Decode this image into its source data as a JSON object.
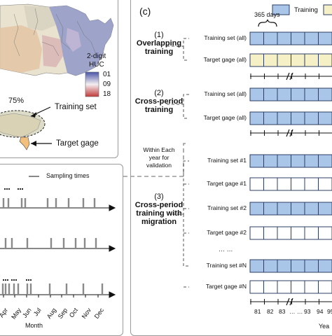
{
  "map_panel": {
    "huc_title_line1": "2-digit",
    "huc_title_line2": "HUC",
    "scale_labels": [
      "01",
      "09",
      "18"
    ],
    "percent_label": "75%",
    "training_set_label": "Training set",
    "target_gage_label": "Target gage"
  },
  "sampling_panel": {
    "legend_label": "Sampling times",
    "months": [
      "Apr",
      "May",
      "Jun",
      "Jul",
      "Aug",
      "Sep",
      "Oct",
      "Nov",
      "Dec"
    ],
    "xlabel": "Month"
  },
  "panel_c": {
    "panel_label": "(c)",
    "days_label": "365 days",
    "legend_training": "Training",
    "validation_note": [
      "Within Each",
      "year for",
      "validation"
    ],
    "sections": [
      {
        "number": "(1)",
        "title": [
          "Overlapping",
          "training"
        ],
        "rows": [
          "Training set (all)",
          "Target gage (all)"
        ]
      },
      {
        "number": "(2)",
        "title": [
          "Cross-period",
          "training"
        ],
        "rows": [
          "Training set (all)",
          "Target gage (all)"
        ]
      },
      {
        "number": "(3)",
        "title": [
          "Cross-period",
          "training with",
          "migration"
        ],
        "rows": [
          "Training set #1",
          "Target gage #1",
          "Training set #2",
          "Target gage #2",
          "Training set #N",
          "Target gage #N"
        ]
      }
    ],
    "year_ticks": [
      "81",
      "82",
      "83",
      "… …",
      "93",
      "94",
      "95"
    ],
    "ellipsis": "… …",
    "axis_label_partial": "Yea"
  },
  "colors": {
    "training_fill": "#a9c6e8",
    "target_fill": "#f6f0c6",
    "box_stroke": "#2c3e66",
    "panel_border": "#9a9a9a"
  }
}
